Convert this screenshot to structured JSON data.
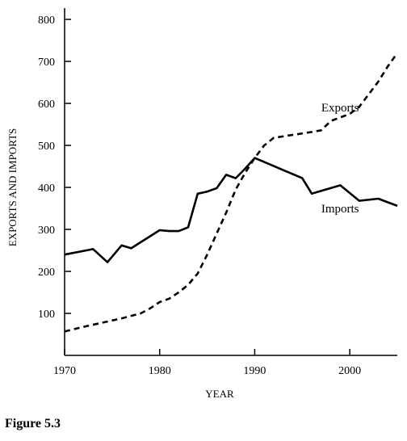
{
  "figure": {
    "caption": "Figure 5.3"
  },
  "chart_data": {
    "type": "line",
    "xlabel": "YEAR",
    "ylabel": "EXPORTS AND IMPORTS",
    "xlim": [
      1970,
      2005
    ],
    "ylim": [
      0,
      800
    ],
    "xticks": [
      1970,
      1980,
      1990,
      2000
    ],
    "yticks": [
      100,
      200,
      300,
      400,
      500,
      600,
      700,
      800
    ],
    "grid": false,
    "legend": "inline labels",
    "series": [
      {
        "name": "Exports",
        "style": "dashed",
        "color": "#000000",
        "label_year": 1997,
        "label_value": 590,
        "x": [
          1970,
          1972,
          1974,
          1976,
          1978,
          1979,
          1980,
          1981,
          1982,
          1983,
          1984,
          1985,
          1986,
          1987,
          1988,
          1989,
          1990,
          1991,
          1992,
          1994,
          1996,
          1997,
          1998,
          2000,
          2001,
          2002,
          2003,
          2004,
          2005
        ],
        "values": [
          57,
          68,
          78,
          88,
          100,
          112,
          127,
          135,
          150,
          168,
          195,
          240,
          290,
          340,
          395,
          435,
          470,
          500,
          518,
          525,
          532,
          536,
          558,
          575,
          592,
          622,
          652,
          688,
          720
        ]
      },
      {
        "name": "Imports",
        "style": "solid",
        "color": "#000000",
        "label_year": 1997,
        "label_value": 350,
        "x": [
          1970,
          1973,
          1974.5,
          1976,
          1977,
          1980,
          1981,
          1982,
          1983,
          1984,
          1985,
          1986,
          1987,
          1988,
          1989,
          1990,
          1995,
          1996,
          1999,
          2001,
          2003,
          2005
        ],
        "values": [
          240,
          253,
          222,
          262,
          255,
          298,
          296,
          296,
          305,
          385,
          390,
          398,
          430,
          422,
          445,
          470,
          422,
          385,
          405,
          368,
          373,
          356
        ]
      }
    ]
  }
}
